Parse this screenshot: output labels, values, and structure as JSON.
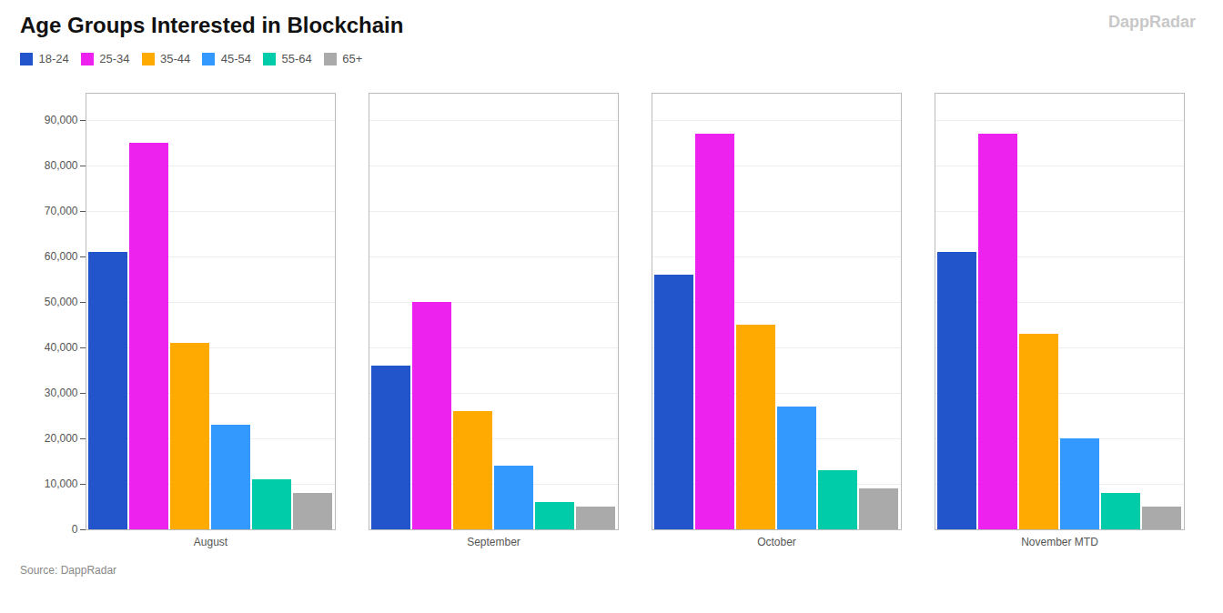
{
  "chart_data": {
    "type": "bar",
    "title": "Age Groups Interested in Blockchain",
    "categories": [
      "August",
      "September",
      "October",
      "November MTD"
    ],
    "series": [
      {
        "name": "18-24",
        "color": "#2255cc",
        "values": [
          61000,
          36000,
          56000,
          61000
        ]
      },
      {
        "name": "25-34",
        "color": "#ee22ee",
        "values": [
          85000,
          50000,
          87000,
          87000
        ]
      },
      {
        "name": "35-44",
        "color": "#ffaa00",
        "values": [
          41000,
          26000,
          45000,
          43000
        ]
      },
      {
        "name": "45-54",
        "color": "#3399ff",
        "values": [
          23000,
          14000,
          27000,
          20000
        ]
      },
      {
        "name": "55-64",
        "color": "#00ccaa",
        "values": [
          11000,
          6000,
          13000,
          8000
        ]
      },
      {
        "name": "65+",
        "color": "#aaaaaa",
        "values": [
          8000,
          5000,
          9000,
          5000
        ]
      }
    ],
    "ylim": [
      0,
      96000
    ],
    "yticks": [
      0,
      {
        "value": 10000,
        "label": "10,000"
      },
      {
        "value": 20000,
        "label": "20,000"
      },
      {
        "value": 30000,
        "label": "30,000"
      },
      {
        "value": 40000,
        "label": "40,000"
      },
      {
        "value": 50000,
        "label": "50,000"
      },
      {
        "value": 60000,
        "label": "60,000"
      },
      {
        "value": 70000,
        "label": "70,000"
      },
      {
        "value": 80000,
        "label": "80,000"
      },
      {
        "value": 90000,
        "label": "90,000"
      }
    ],
    "grid": true,
    "legend": "top left",
    "annotations": [
      "Source: DappRadar",
      "DappRadar"
    ]
  }
}
